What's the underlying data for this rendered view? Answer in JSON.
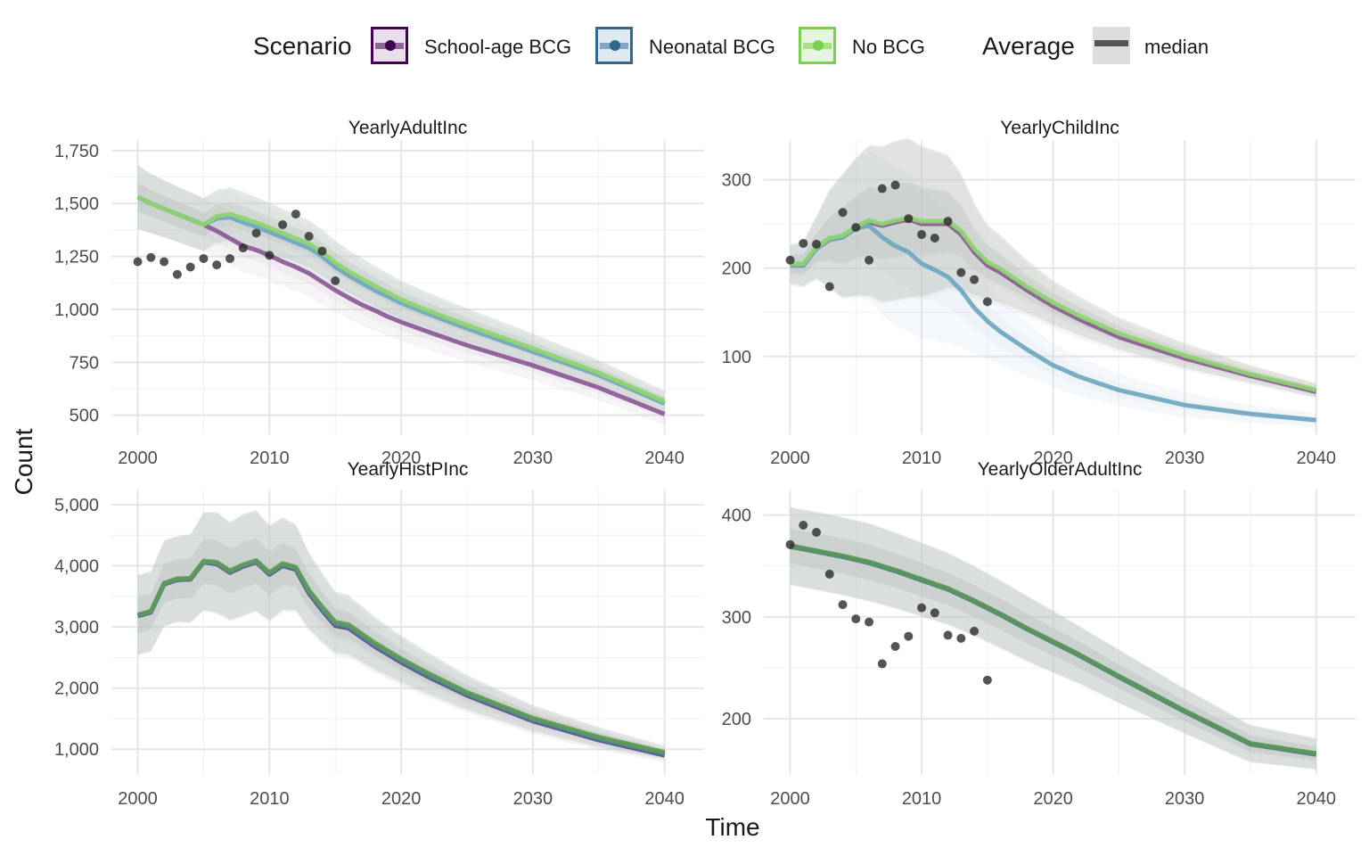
{
  "legend": {
    "scenario_title": "Scenario",
    "average_title": "Average",
    "scenario_items": [
      {
        "label": "School-age BCG",
        "color": "#440154",
        "fill": "#e9dfeb",
        "line": "#8c6a95"
      },
      {
        "label": "Neonatal BCG",
        "color": "#31688e",
        "fill": "#dfeaf0",
        "line": "#7fa8c0"
      },
      {
        "label": "No BCG",
        "color": "#7ad151",
        "fill": "#e6f5df",
        "line": "#a8e08a"
      }
    ],
    "average_items": [
      {
        "label": "median",
        "color": "#555555",
        "fill": "#dddddd"
      }
    ]
  },
  "axis": {
    "xlabel": "Time",
    "ylabel": "Count"
  },
  "chart_data": [
    {
      "type": "line",
      "title": "YearlyAdultInc",
      "xlim": [
        1998,
        2043
      ],
      "ylim": [
        410,
        1800
      ],
      "xticks": [
        2000,
        2010,
        2020,
        2030,
        2040
      ],
      "xtick_labels": [
        "2000",
        "2010",
        "2020",
        "2030",
        "2040"
      ],
      "yticks": [
        500,
        750,
        1000,
        1250,
        1500,
        1750
      ],
      "ytick_labels": [
        "500",
        "750",
        "1,000",
        "1,250",
        "1,500",
        "1,750"
      ],
      "grid": true,
      "x": [
        2000,
        2001,
        2002,
        2003,
        2004,
        2005,
        2006,
        2007,
        2008,
        2009,
        2010,
        2011,
        2012,
        2013,
        2014,
        2015,
        2016,
        2017,
        2018,
        2019,
        2020,
        2022,
        2025,
        2030,
        2035,
        2040
      ],
      "series": [
        {
          "name": "School-age BCG",
          "color": "#8a5a93",
          "values": [
            1530,
            1500,
            1475,
            1450,
            1425,
            1400,
            1370,
            1335,
            1300,
            1280,
            1255,
            1225,
            1200,
            1170,
            1130,
            1090,
            1055,
            1022,
            995,
            965,
            940,
            895,
            830,
            735,
            630,
            505
          ]
        },
        {
          "name": "Neonatal BCG",
          "color": "#6ea7bf",
          "values": [
            1530,
            1500,
            1475,
            1450,
            1425,
            1400,
            1430,
            1435,
            1410,
            1390,
            1365,
            1340,
            1315,
            1290,
            1250,
            1200,
            1160,
            1125,
            1090,
            1060,
            1030,
            980,
            910,
            800,
            690,
            555
          ]
        },
        {
          "name": "No BCG",
          "color": "#8ed36f",
          "values": [
            1530,
            1500,
            1475,
            1450,
            1425,
            1400,
            1440,
            1450,
            1430,
            1410,
            1385,
            1360,
            1335,
            1310,
            1270,
            1220,
            1180,
            1145,
            1110,
            1078,
            1045,
            995,
            925,
            815,
            700,
            565
          ]
        }
      ],
      "band_spread": [
        150,
        140,
        135,
        130,
        128,
        125,
        125,
        125,
        125,
        120,
        118,
        115,
        112,
        110,
        108,
        105,
        100,
        98,
        95,
        92,
        90,
        85,
        80,
        70,
        60,
        50
      ],
      "observed": {
        "x": [
          2000,
          2001,
          2002,
          2003,
          2004,
          2005,
          2006,
          2007,
          2008,
          2009,
          2010,
          2011,
          2012,
          2013,
          2014,
          2015
        ],
        "y": [
          1225,
          1245,
          1225,
          1165,
          1200,
          1240,
          1210,
          1240,
          1290,
          1360,
          1255,
          1400,
          1450,
          1345,
          1275,
          1135
        ]
      }
    },
    {
      "type": "line",
      "title": "YearlyChildInc",
      "xlim": [
        1998,
        2043
      ],
      "ylim": [
        12,
        345
      ],
      "xticks": [
        2000,
        2010,
        2020,
        2030,
        2040
      ],
      "xtick_labels": [
        "2000",
        "2010",
        "2020",
        "2030",
        "2040"
      ],
      "yticks": [
        100,
        200,
        300
      ],
      "ytick_labels": [
        "100",
        "200",
        "300"
      ],
      "grid": true,
      "x": [
        2000,
        2001,
        2002,
        2003,
        2004,
        2005,
        2006,
        2007,
        2008,
        2009,
        2010,
        2011,
        2012,
        2013,
        2014,
        2015,
        2016,
        2018,
        2020,
        2022,
        2025,
        2030,
        2035,
        2040
      ],
      "series": [
        {
          "name": "School-age BCG",
          "color": "#8a5a93",
          "values": [
            203,
            203,
            222,
            232,
            235,
            245,
            252,
            248,
            252,
            255,
            250,
            250,
            250,
            238,
            218,
            203,
            195,
            175,
            157,
            142,
            122,
            98,
            78,
            60
          ]
        },
        {
          "name": "Neonatal BCG",
          "color": "#6ea7bf",
          "values": [
            203,
            203,
            222,
            232,
            235,
            245,
            248,
            235,
            225,
            218,
            205,
            198,
            190,
            175,
            155,
            140,
            128,
            108,
            90,
            77,
            62,
            45,
            35,
            28
          ]
        },
        {
          "name": "No BCG",
          "color": "#8ed36f",
          "values": [
            205,
            205,
            224,
            234,
            237,
            247,
            254,
            250,
            254,
            257,
            253,
            253,
            253,
            242,
            222,
            207,
            199,
            179,
            161,
            146,
            126,
            101,
            80,
            62
          ]
        }
      ],
      "band_spread": [
        22,
        25,
        35,
        55,
        70,
        78,
        85,
        88,
        90,
        90,
        85,
        80,
        75,
        65,
        52,
        42,
        38,
        30,
        25,
        22,
        18,
        14,
        10,
        8
      ],
      "observed": {
        "x": [
          2000,
          2001,
          2002,
          2003,
          2004,
          2005,
          2006,
          2007,
          2008,
          2009,
          2010,
          2011,
          2012,
          2013,
          2014,
          2015
        ],
        "y": [
          209,
          228,
          227,
          179,
          263,
          246,
          209,
          290,
          294,
          256,
          238,
          234,
          253,
          195,
          187,
          162
        ]
      }
    },
    {
      "type": "line",
      "title": "YearlyHistPInc",
      "xlim": [
        1998,
        2043
      ],
      "ylim": [
        580,
        5250
      ],
      "xticks": [
        2000,
        2010,
        2020,
        2030,
        2040
      ],
      "xtick_labels": [
        "2000",
        "2010",
        "2020",
        "2030",
        "2040"
      ],
      "yticks": [
        1000,
        2000,
        3000,
        4000,
        5000
      ],
      "ytick_labels": [
        "1,000",
        "2,000",
        "3,000",
        "4,000",
        "5,000"
      ],
      "grid": true,
      "x": [
        2000,
        2001,
        2002,
        2003,
        2004,
        2005,
        2006,
        2007,
        2008,
        2009,
        2010,
        2011,
        2012,
        2013,
        2014,
        2015,
        2016,
        2018,
        2020,
        2022,
        2025,
        2030,
        2035,
        2040
      ],
      "series": [
        {
          "name": "School-age BCG",
          "color": "#5a4a86",
          "values": [
            3180,
            3240,
            3700,
            3770,
            3780,
            4060,
            4030,
            3890,
            3990,
            4060,
            3860,
            4000,
            3940,
            3550,
            3270,
            3020,
            2980,
            2680,
            2420,
            2190,
            1880,
            1460,
            1150,
            900
          ]
        },
        {
          "name": "Neonatal BCG",
          "color": "#4a8a9e",
          "values": [
            3190,
            3250,
            3710,
            3780,
            3790,
            4070,
            4045,
            3905,
            4005,
            4075,
            3875,
            4020,
            3960,
            3575,
            3300,
            3050,
            3010,
            2710,
            2450,
            2220,
            1905,
            1485,
            1175,
            925
          ]
        },
        {
          "name": "No BCG",
          "color": "#5f9a55",
          "values": [
            3200,
            3260,
            3720,
            3790,
            3800,
            4080,
            4060,
            3920,
            4020,
            4090,
            3890,
            4040,
            3980,
            3600,
            3330,
            3080,
            3040,
            2740,
            2480,
            2250,
            1930,
            1510,
            1200,
            950
          ]
        }
      ],
      "band_spread": [
        650,
        650,
        700,
        700,
        720,
        800,
        820,
        800,
        830,
        820,
        780,
        760,
        700,
        620,
        560,
        500,
        480,
        430,
        380,
        340,
        280,
        210,
        160,
        110
      ],
      "observed": {
        "x": [],
        "y": []
      }
    },
    {
      "type": "line",
      "title": "YearlyOlderAdultInc",
      "xlim": [
        1998,
        2043
      ],
      "ylim": [
        145,
        425
      ],
      "xticks": [
        2000,
        2010,
        2020,
        2030,
        2040
      ],
      "xtick_labels": [
        "2000",
        "2010",
        "2020",
        "2030",
        "2040"
      ],
      "yticks": [
        200,
        300,
        400
      ],
      "ytick_labels": [
        "200",
        "300",
        "400"
      ],
      "grid": true,
      "x": [
        2000,
        2002,
        2004,
        2006,
        2008,
        2010,
        2012,
        2014,
        2016,
        2018,
        2020,
        2022,
        2025,
        2030,
        2035,
        2040
      ],
      "series": [
        {
          "name": "School-age BCG",
          "color": "#5a6a70",
          "values": [
            369,
            364,
            359,
            353,
            345,
            336,
            327,
            315,
            302,
            288,
            275,
            262,
            241,
            207,
            175,
            165
          ]
        },
        {
          "name": "Neonatal BCG",
          "color": "#4f8a86",
          "values": [
            369,
            364,
            359,
            353,
            345,
            336,
            327,
            315,
            302,
            288,
            275,
            262,
            241,
            207,
            175,
            165
          ]
        },
        {
          "name": "No BCG",
          "color": "#5a955a",
          "values": [
            370,
            365,
            360,
            354,
            346,
            337,
            328,
            316,
            303,
            289,
            276,
            263,
            242,
            208,
            176,
            166
          ]
        }
      ],
      "band_spread": [
        38,
        38,
        38,
        38,
        37,
        36,
        35,
        34,
        33,
        32,
        30,
        28,
        26,
        22,
        18,
        15
      ],
      "observed": {
        "x": [
          2000,
          2001,
          2002,
          2003,
          2004,
          2005,
          2006,
          2007,
          2008,
          2009,
          2010,
          2011,
          2012,
          2013,
          2014,
          2015
        ],
        "y": [
          371,
          390,
          383,
          342,
          312,
          298,
          295,
          254,
          271,
          281,
          309,
          304,
          282,
          279,
          286,
          238
        ]
      }
    }
  ]
}
